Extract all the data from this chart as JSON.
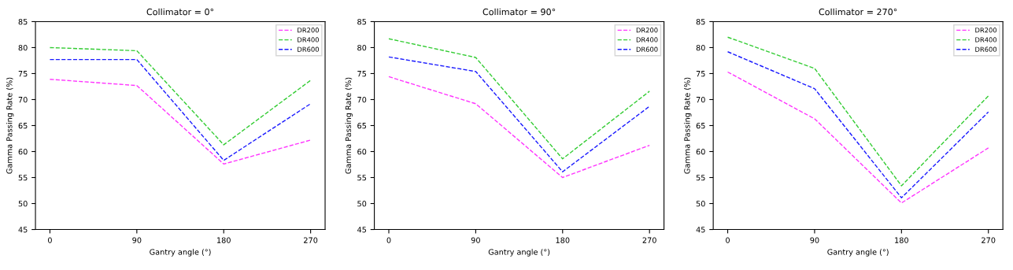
{
  "chart_data": [
    {
      "type": "line",
      "title": "Collimator = 0°",
      "xlabel": "Gantry angle (°)",
      "ylabel": "Gamma Passing Rate (%)",
      "x": [
        0,
        90,
        180,
        270
      ],
      "xlim": [
        -15,
        285
      ],
      "xticks": [
        0,
        90,
        180,
        270
      ],
      "ylim": [
        45,
        85
      ],
      "yticks": [
        45,
        50,
        55,
        60,
        65,
        70,
        75,
        80,
        85
      ],
      "grid": false,
      "legend": "top right",
      "marker": "none",
      "line_style": "dashed",
      "series": [
        {
          "name": "DR200",
          "color": "#ff33ff",
          "values": [
            73.9,
            72.7,
            57.6,
            62.2
          ]
        },
        {
          "name": "DR400",
          "color": "#33cc33",
          "values": [
            80.0,
            79.4,
            61.3,
            73.7
          ]
        },
        {
          "name": "DR600",
          "color": "#1a1aff",
          "values": [
            77.7,
            77.7,
            58.3,
            69.2
          ]
        }
      ]
    },
    {
      "type": "line",
      "title": "Collimator = 90°",
      "xlabel": "Gantry angle (°)",
      "ylabel": "Gamma Passing Rate (%)",
      "x": [
        0,
        90,
        180,
        270
      ],
      "xlim": [
        -15,
        285
      ],
      "xticks": [
        0,
        90,
        180,
        270
      ],
      "ylim": [
        45,
        85
      ],
      "yticks": [
        45,
        50,
        55,
        60,
        65,
        70,
        75,
        80,
        85
      ],
      "grid": false,
      "legend": "top right",
      "marker": "none",
      "line_style": "dashed",
      "series": [
        {
          "name": "DR200",
          "color": "#ff33ff",
          "values": [
            74.4,
            69.2,
            55.0,
            61.2
          ]
        },
        {
          "name": "DR400",
          "color": "#33cc33",
          "values": [
            81.7,
            78.1,
            58.6,
            71.6
          ]
        },
        {
          "name": "DR600",
          "color": "#1a1aff",
          "values": [
            78.2,
            75.4,
            56.1,
            68.7
          ]
        }
      ]
    },
    {
      "type": "line",
      "title": "Collimator = 270°",
      "xlabel": "Gantry angle (°)",
      "ylabel": "Gamma Passing Rate (%)",
      "x": [
        0,
        90,
        180,
        270
      ],
      "xlim": [
        -15,
        285
      ],
      "xticks": [
        0,
        90,
        180,
        270
      ],
      "ylim": [
        45,
        85
      ],
      "yticks": [
        45,
        50,
        55,
        60,
        65,
        70,
        75,
        80,
        85
      ],
      "grid": false,
      "legend": "top right",
      "marker": "none",
      "line_style": "dashed",
      "series": [
        {
          "name": "DR200",
          "color": "#ff33ff",
          "values": [
            75.3,
            66.3,
            50.1,
            60.7
          ]
        },
        {
          "name": "DR400",
          "color": "#33cc33",
          "values": [
            82.0,
            76.0,
            53.4,
            70.7
          ]
        },
        {
          "name": "DR600",
          "color": "#1a1aff",
          "values": [
            79.2,
            72.1,
            51.1,
            67.6
          ]
        }
      ]
    }
  ]
}
